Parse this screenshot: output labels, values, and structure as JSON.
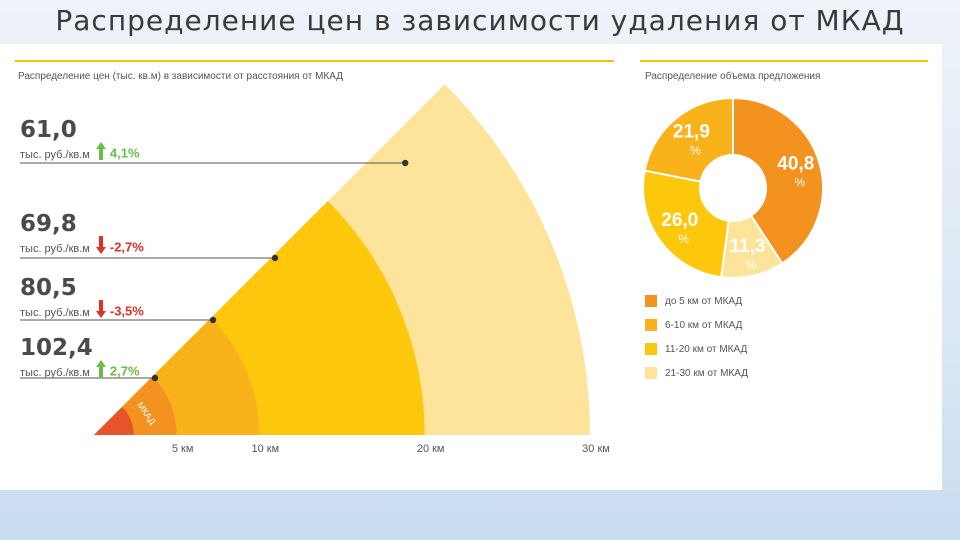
{
  "slide": {
    "title": "Распределение цен в зависимости удаления от МКАД"
  },
  "left_header": "Распределение цен (тыс. кв.м) в зависимости от расстояния от МКАД",
  "right_header": "Распределение объема предложения",
  "colors": {
    "ring1": "#e8542a",
    "ring2": "#f4921f",
    "ring3": "#f9b21a",
    "ring4": "#fdc70c",
    "ring5": "#fde49a",
    "up": "#6abe45",
    "down": "#e03127",
    "accent_line": "#f7c300"
  },
  "chart_data": [
    {
      "type": "area",
      "title": "Распределение цен (тыс. кв.м) в зависимости от расстояния от МКАД",
      "unit": "тыс. руб./кв.м",
      "center_label": "МКАД",
      "x_ticks": [
        {
          "value": 5,
          "label": "5 км"
        },
        {
          "value": 10,
          "label": "10 км"
        },
        {
          "value": 20,
          "label": "20 км"
        },
        {
          "value": 30,
          "label": "30 км"
        }
      ],
      "xlim": [
        0,
        30
      ],
      "zones": [
        {
          "from": 0,
          "to": 5,
          "price": "102,4",
          "change": "2,7%",
          "direction": "up"
        },
        {
          "from": 5,
          "to": 10,
          "price": "80,5",
          "change": "-3,5%",
          "direction": "down"
        },
        {
          "from": 10,
          "to": 20,
          "price": "69,8",
          "change": "-2,7%",
          "direction": "down"
        },
        {
          "from": 20,
          "to": 30,
          "price": "61,0",
          "change": "4,1%",
          "direction": "up"
        }
      ]
    },
    {
      "type": "pie",
      "title": "Распределение объема предложения",
      "slices": [
        {
          "label": "до 5 км от МКАД",
          "value": 40.8,
          "display": "40,8",
          "pct": "%",
          "color": "#f4921f"
        },
        {
          "label": "6-10 км от МКАД",
          "value": 21.9,
          "display": "21,9",
          "pct": "%",
          "color": "#f9b21a"
        },
        {
          "label": "11-20 км от МКАД",
          "value": 26.0,
          "display": "26,0",
          "pct": "%",
          "color": "#fdc70c"
        },
        {
          "label": "21-30 км от МКАД",
          "value": 11.3,
          "display": "11,3",
          "pct": "%",
          "color": "#fde49a"
        }
      ],
      "order_clockwise": [
        0,
        3,
        2,
        1
      ]
    }
  ]
}
